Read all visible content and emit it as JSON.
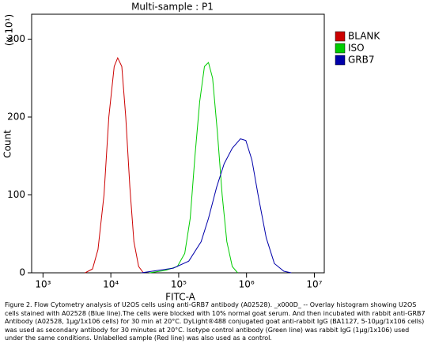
{
  "chart_data": {
    "type": "line",
    "title": "Multi-sample : P1",
    "x_label": "FITC-A",
    "y_label": "Count",
    "y_multiplier": "(x 10¹)",
    "log_x": true,
    "xlim": [
      680,
      14000000
    ],
    "ylim": [
      0,
      332
    ],
    "xticks": [
      {
        "value": 1000,
        "label": "10³"
      },
      {
        "value": 10000,
        "label": "10⁴"
      },
      {
        "value": 100000,
        "label": "10⁵"
      },
      {
        "value": 1000000,
        "label": "10⁶"
      },
      {
        "value": 10000000,
        "label": "10⁷"
      }
    ],
    "yticks": [
      0,
      100,
      200,
      300
    ],
    "legend": "right",
    "series": [
      {
        "name": "BLANK",
        "color": "#cc0000",
        "x": [
          4170,
          5370,
          6460,
          7940,
          9330,
          11200,
          12600,
          14500,
          16600,
          19100,
          21900,
          25700,
          30200
        ],
        "values": [
          0,
          5,
          30,
          100,
          200,
          265,
          276,
          265,
          200,
          110,
          40,
          8,
          0
        ]
      },
      {
        "name": "ISO",
        "color": "#00cc00",
        "x": [
          37200,
          63100,
          95500,
          123000,
          148000,
          174000,
          204000,
          240000,
          275000,
          316000,
          372000,
          437000,
          513000,
          617000,
          741000
        ],
        "values": [
          0,
          3,
          8,
          25,
          70,
          150,
          220,
          265,
          270,
          250,
          180,
          100,
          40,
          8,
          0
        ]
      },
      {
        "name": "GRB7",
        "color": "#0000aa",
        "x": [
          28200,
          49000,
          83200,
          141000,
          214000,
          275000,
          363000,
          468000,
          617000,
          813000,
          977000,
          1200000,
          1480000,
          1950000,
          2570000,
          3550000,
          4570000
        ],
        "values": [
          0,
          3,
          6,
          15,
          40,
          70,
          110,
          140,
          160,
          172,
          170,
          145,
          100,
          45,
          12,
          2,
          0
        ]
      }
    ],
    "caption": "Figure 2. Flow Cytometry analysis of U2OS cells using anti-GRB7 antibody (A02528). _x000D_ -- Overlay histogram showing U2OS cells stained with A02528 (Blue line).The cells were blocked with 10% normal goat serum. And then incubated with rabbit anti-GRB7 Antibody (A02528, 1μg/1x106 cells) for 30 min at 20°C. DyLight®488 conjugated goat anti-rabbit IgG (BA1127, 5-10μg/1x106 cells) was used as secondary antibody for 30 minutes at 20°C. Isotype control antibody (Green line) was rabbit IgG (1μg/1x106) used under the same conditions. Unlabelled sample (Red line) was also used as a control."
  }
}
